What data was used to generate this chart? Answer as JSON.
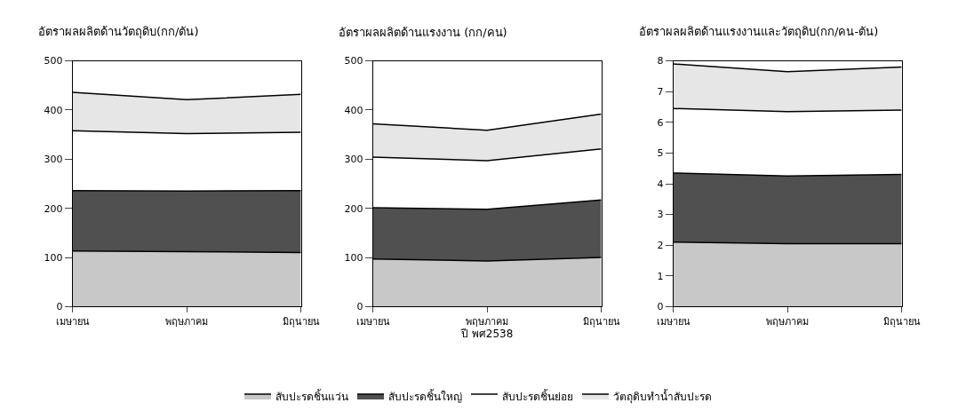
{
  "chart_data": [
    {
      "type": "area",
      "title": "อัตราผลผลิตด้านวัตถุดิบ(กก/ตัน)",
      "categories": [
        "เมษายน",
        "พฤษภาคม",
        "มิถุนายน"
      ],
      "stacked": true,
      "ylim": [
        0,
        500
      ],
      "yticks": [
        0,
        100,
        200,
        300,
        400,
        500
      ],
      "legend": "bottom",
      "series": [
        {
          "name": "สับปะรดชิ้นแว่น",
          "color": "#c8c8c8",
          "values": [
            113,
            112,
            110
          ]
        },
        {
          "name": "สับปะรดชิ้นใหญ่",
          "color": "#505050",
          "values": [
            123,
            123,
            126
          ]
        },
        {
          "name": "สับปะรดชิ้นย่อย",
          "color": "#ffffff",
          "values": [
            122,
            117,
            119
          ]
        },
        {
          "name": "วัตถุดิบทำน้ำสับปะรด",
          "color": "#e6e6e6",
          "values": [
            78,
            69,
            77
          ]
        }
      ]
    },
    {
      "type": "area",
      "title": "อัตราผลผลิตด้านแรงงาน (กก/คน)",
      "xlabel": "ปี พศ2538",
      "categories": [
        "เมษายน",
        "พฤษภาคม",
        "มิถุนายน"
      ],
      "stacked": true,
      "ylim": [
        0,
        500
      ],
      "yticks": [
        0,
        100,
        200,
        300,
        400,
        500
      ],
      "series": [
        {
          "color": "#c8c8c8",
          "values": [
            97,
            93,
            100
          ]
        },
        {
          "color": "#505050",
          "values": [
            104,
            105,
            117
          ]
        },
        {
          "color": "#ffffff",
          "values": [
            103,
            99,
            104
          ]
        },
        {
          "color": "#e6e6e6",
          "values": [
            68,
            62,
            71
          ]
        }
      ]
    },
    {
      "type": "area",
      "title": "อัตราผลผลิตด้านแรงงานและวัตถุดิบ(กก/คน-ตัน)",
      "categories": [
        "เมษายน",
        "พฤษภาคม",
        "มิถุนายน"
      ],
      "stacked": true,
      "ylim": [
        0,
        8
      ],
      "yticks": [
        0,
        1,
        2,
        3,
        4,
        5,
        6,
        7,
        8
      ],
      "series": [
        {
          "color": "#c8c8c8",
          "values": [
            2.1,
            2.05,
            2.05
          ]
        },
        {
          "color": "#505050",
          "values": [
            2.25,
            2.2,
            2.25
          ]
        },
        {
          "color": "#ffffff",
          "values": [
            2.1,
            2.1,
            2.1
          ]
        },
        {
          "color": "#e6e6e6",
          "values": [
            1.45,
            1.3,
            1.4
          ]
        }
      ]
    }
  ]
}
